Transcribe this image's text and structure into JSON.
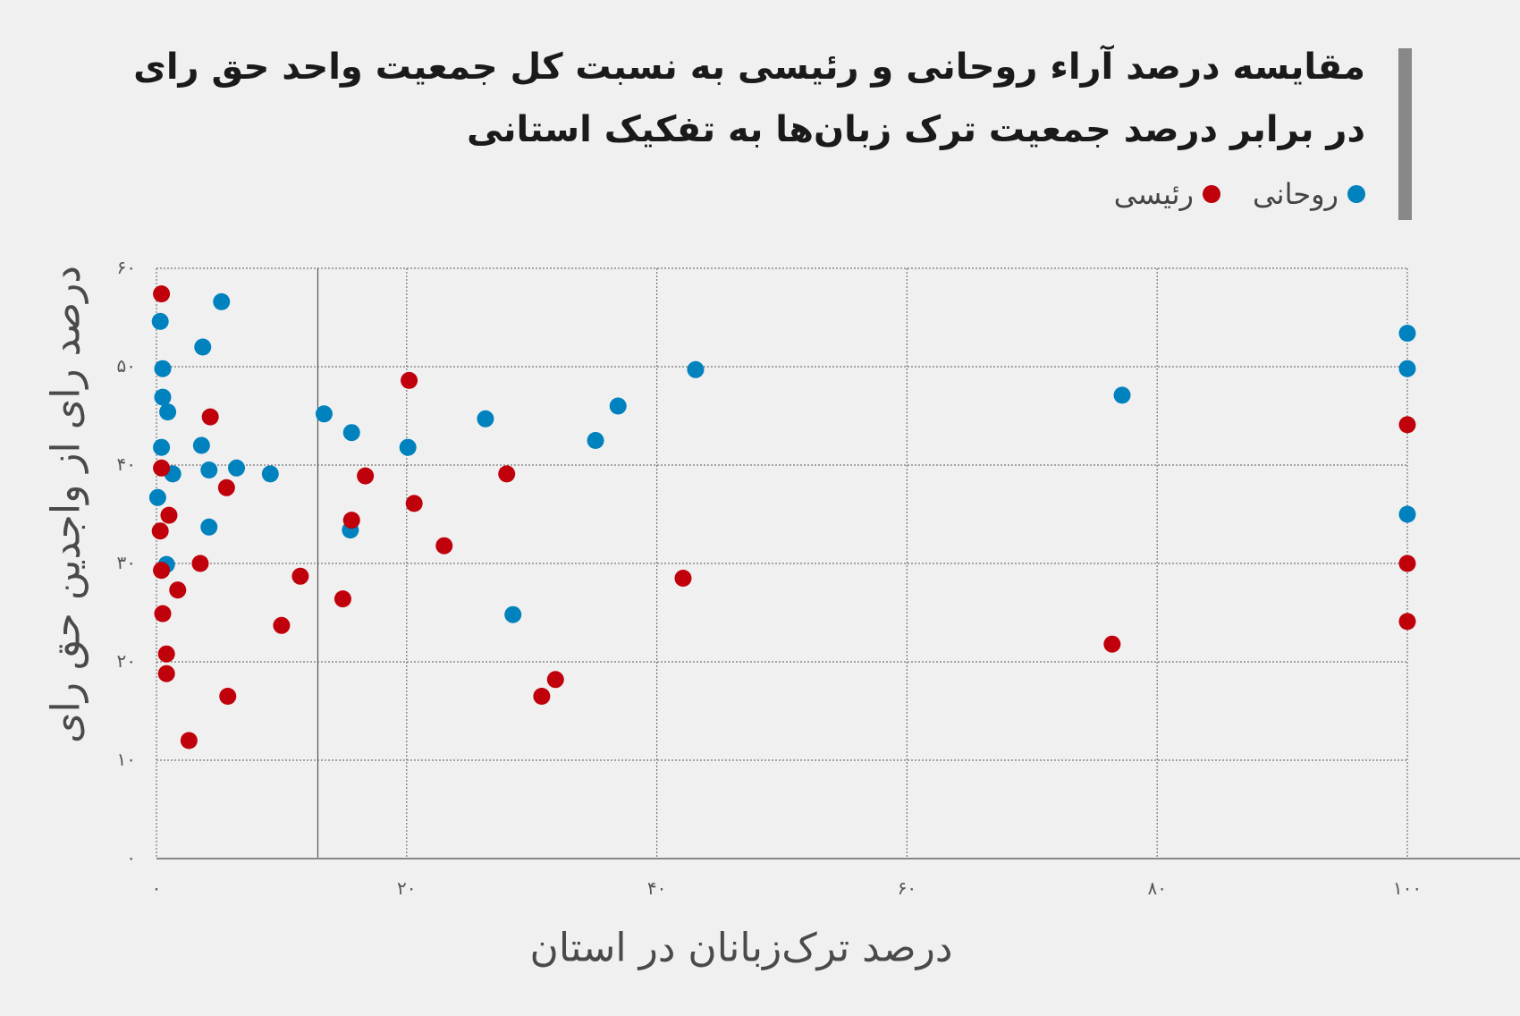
{
  "chart_data": {
    "type": "scatter",
    "title_lines": [
      "مقایسه درصد آراء روحانی و رئیسی به نسبت کل جمعیت واحد حق رای",
      "در برابر درصد جمعیت ترک زبان‌ها به تفکیک استانی"
    ],
    "xlabel": "درصد ترک‌زبانان در استان",
    "ylabel": "درصد رای از واجدین حق رای",
    "xlim": [
      0,
      100
    ],
    "ylim": [
      0,
      60
    ],
    "x_ticks": [
      {
        "v": 0,
        "label": "۰"
      },
      {
        "v": 20,
        "label": "۲۰"
      },
      {
        "v": 40,
        "label": "۴۰"
      },
      {
        "v": 60,
        "label": "۶۰"
      },
      {
        "v": 80,
        "label": "۸۰"
      },
      {
        "v": 100,
        "label": "۱۰۰"
      }
    ],
    "y_ticks": [
      {
        "v": 0,
        "label": "۰"
      },
      {
        "v": 10,
        "label": "۱۰"
      },
      {
        "v": 20,
        "label": "۲۰"
      },
      {
        "v": 30,
        "label": "۳۰"
      },
      {
        "v": 40,
        "label": "۴۰"
      },
      {
        "v": 50,
        "label": "۵۰"
      },
      {
        "v": 60,
        "label": "۶۰"
      }
    ],
    "grid": true,
    "reference_line_x": 12.9,
    "legend_position": "top-right",
    "series": [
      {
        "name": "روحانی",
        "color": "#0082be",
        "points": [
          [
            0.3,
            54.6
          ],
          [
            5.2,
            56.6
          ],
          [
            3.7,
            52.0
          ],
          [
            0.5,
            49.8
          ],
          [
            0.5,
            46.9
          ],
          [
            0.9,
            45.4
          ],
          [
            0.4,
            41.8
          ],
          [
            3.6,
            42.0
          ],
          [
            4.2,
            39.5
          ],
          [
            6.4,
            39.7
          ],
          [
            1.3,
            39.1
          ],
          [
            0.1,
            36.7
          ],
          [
            4.2,
            33.7
          ],
          [
            0.8,
            29.9
          ],
          [
            9.1,
            39.1
          ],
          [
            13.4,
            45.2
          ],
          [
            15.6,
            43.3
          ],
          [
            20.1,
            41.8
          ],
          [
            15.5,
            33.4
          ],
          [
            26.3,
            44.7
          ],
          [
            28.5,
            24.8
          ],
          [
            35.1,
            42.5
          ],
          [
            36.9,
            46.0
          ],
          [
            43.1,
            49.7
          ],
          [
            77.2,
            47.1
          ],
          [
            100,
            53.4
          ],
          [
            100,
            49.8
          ],
          [
            100,
            35.0
          ]
        ]
      },
      {
        "name": "رئیسی",
        "color": "#c0000a",
        "points": [
          [
            0.4,
            57.4
          ],
          [
            4.3,
            44.9
          ],
          [
            20.2,
            48.6
          ],
          [
            0.4,
            39.7
          ],
          [
            5.6,
            37.7
          ],
          [
            16.7,
            38.9
          ],
          [
            1.0,
            34.9
          ],
          [
            0.3,
            33.3
          ],
          [
            20.6,
            36.1
          ],
          [
            15.6,
            34.4
          ],
          [
            28.0,
            39.1
          ],
          [
            23.0,
            31.8
          ],
          [
            3.5,
            30.0
          ],
          [
            0.4,
            29.3
          ],
          [
            11.5,
            28.7
          ],
          [
            1.7,
            27.3
          ],
          [
            14.9,
            26.4
          ],
          [
            0.5,
            24.9
          ],
          [
            10.0,
            23.7
          ],
          [
            42.1,
            28.5
          ],
          [
            0.8,
            20.8
          ],
          [
            0.8,
            18.8
          ],
          [
            5.7,
            16.5
          ],
          [
            30.8,
            16.5
          ],
          [
            31.9,
            18.2
          ],
          [
            2.6,
            12.0
          ],
          [
            76.4,
            21.8
          ],
          [
            100,
            44.1
          ],
          [
            100,
            30.0
          ],
          [
            100,
            24.1
          ]
        ]
      }
    ]
  }
}
